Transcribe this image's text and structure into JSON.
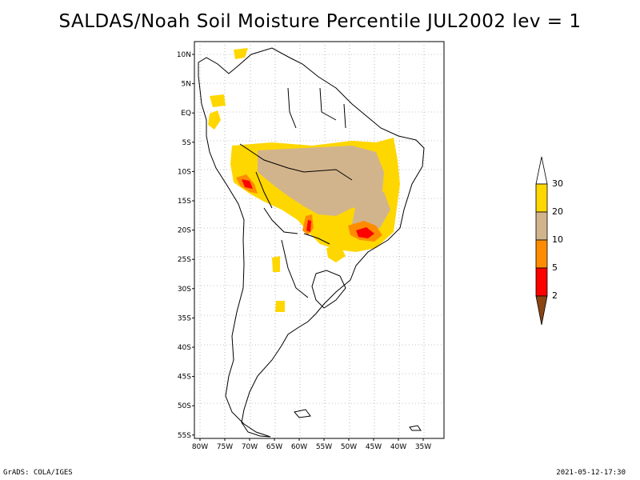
{
  "title": "SALDAS/Noah Soil Moisture Percentile JUL2002 lev = 1",
  "footer_left": "GrADS: COLA/IGES",
  "footer_right": "2021-05-12-17:30",
  "lat_ticks": [
    "10N",
    "5N",
    "EQ",
    "5S",
    "10S",
    "15S",
    "20S",
    "25S",
    "30S",
    "35S",
    "40S",
    "45S",
    "50S",
    "55S"
  ],
  "lon_ticks": [
    "80W",
    "75W",
    "70W",
    "65W",
    "60W",
    "55W",
    "50W",
    "45W",
    "40W",
    "35W"
  ],
  "colorbar": {
    "labels": [
      "30",
      "20",
      "10",
      "5",
      "2"
    ],
    "colors": [
      "#ffffff",
      "#ffd700",
      "#d2b48c",
      "#ff8c00",
      "#ff0000",
      "#8b4513"
    ]
  }
}
